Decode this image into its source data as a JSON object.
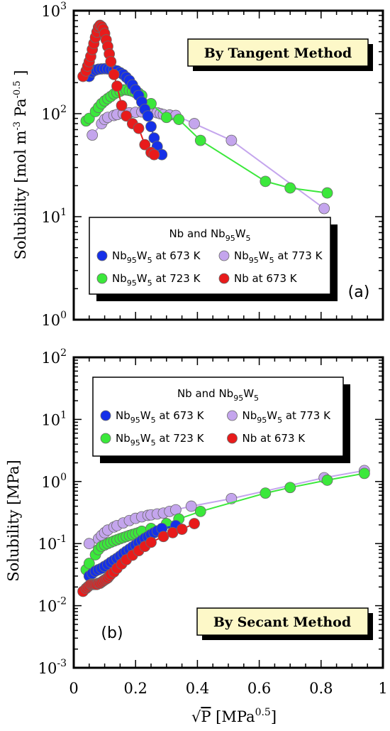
{
  "chart_data": [
    {
      "type": "scatter",
      "panel_label": "(a)",
      "method_box": "By Tangent Method",
      "ylabel": "Solubility [mol m-3 Pa-0.5 ]",
      "ylabel_parts": {
        "main": "Solubility [mol m",
        "exp1": "-3",
        "mid": " Pa",
        "exp2": "-0.5",
        "end": " ]"
      },
      "yscale": "log",
      "ylim": [
        1,
        1000
      ],
      "xlim": [
        0,
        1
      ],
      "y_ticks": [
        {
          "base": "10",
          "exp": "0",
          "value": 1
        },
        {
          "base": "10",
          "exp": "1",
          "value": 10
        },
        {
          "base": "10",
          "exp": "2",
          "value": 100
        },
        {
          "base": "10",
          "exp": "3",
          "value": 1000
        }
      ],
      "legend_title": {
        "a": "Nb and Nb",
        "sub": "95",
        "b": "W",
        "sub2": "5"
      },
      "series": [
        {
          "key": "nbw_673",
          "color": "#1530e8",
          "x": [
            0.05,
            0.06,
            0.07,
            0.08,
            0.09,
            0.1,
            0.11,
            0.12,
            0.13,
            0.14,
            0.15,
            0.16,
            0.17,
            0.18,
            0.19,
            0.2,
            0.21,
            0.22,
            0.23,
            0.24,
            0.25,
            0.26,
            0.27,
            0.285
          ],
          "y": [
            230,
            255,
            265,
            270,
            272,
            273,
            272,
            268,
            265,
            260,
            250,
            240,
            225,
            210,
            190,
            170,
            150,
            130,
            110,
            95,
            75,
            58,
            48,
            40
          ]
        },
        {
          "key": "nbw_723",
          "color": "#3be83b",
          "x": [
            0.04,
            0.05,
            0.07,
            0.08,
            0.09,
            0.1,
            0.11,
            0.12,
            0.13,
            0.14,
            0.15,
            0.16,
            0.17,
            0.18,
            0.19,
            0.2,
            0.21,
            0.22,
            0.25,
            0.3,
            0.34,
            0.41,
            0.62,
            0.7,
            0.82
          ],
          "y": [
            85,
            90,
            105,
            115,
            125,
            133,
            140,
            147,
            155,
            160,
            165,
            170,
            170,
            168,
            165,
            160,
            158,
            150,
            125,
            92,
            88,
            55,
            22,
            19,
            17
          ]
        },
        {
          "key": "nbw_773",
          "color": "#c4a5ed",
          "x": [
            0.06,
            0.09,
            0.1,
            0.11,
            0.13,
            0.14,
            0.16,
            0.18,
            0.2,
            0.22,
            0.24,
            0.25,
            0.27,
            0.28,
            0.29,
            0.31,
            0.33,
            0.39,
            0.51,
            0.81
          ],
          "y": [
            62,
            80,
            88,
            92,
            96,
            98,
            100,
            102,
            103,
            104,
            105,
            104,
            102,
            100,
            98,
            97,
            96,
            80,
            55,
            12
          ]
        },
        {
          "key": "nb_673",
          "color": "#e81b1b",
          "x": [
            0.03,
            0.04,
            0.045,
            0.05,
            0.055,
            0.06,
            0.065,
            0.07,
            0.075,
            0.08,
            0.085,
            0.09,
            0.095,
            0.1,
            0.105,
            0.11,
            0.115,
            0.12,
            0.13,
            0.14,
            0.155,
            0.17,
            0.19,
            0.21,
            0.23,
            0.25,
            0.26
          ],
          "y": [
            230,
            260,
            290,
            320,
            360,
            420,
            480,
            550,
            620,
            690,
            720,
            700,
            660,
            600,
            520,
            450,
            380,
            320,
            240,
            185,
            120,
            95,
            80,
            72,
            50,
            42,
            40
          ]
        }
      ]
    },
    {
      "type": "scatter",
      "panel_label": "(b)",
      "method_box": "By Secant Method",
      "ylabel": "Solubility [MPa]",
      "yscale": "log",
      "ylim": [
        0.001,
        100
      ],
      "xlim": [
        0,
        1
      ],
      "xlabel_parts": {
        "sqrt": "√",
        "var": "P",
        "rest": " [MPa",
        "exp": "0.5",
        "end": "]"
      },
      "x_ticks": [
        "0",
        "0.2",
        "0.4",
        "0.6",
        "0.8",
        "1"
      ],
      "x_tick_values": [
        0,
        0.2,
        0.4,
        0.6,
        0.8,
        1
      ],
      "y_ticks": [
        {
          "base": "10",
          "exp": "-3",
          "value": 0.001
        },
        {
          "base": "10",
          "exp": "-2",
          "value": 0.01
        },
        {
          "base": "10",
          "exp": "-1",
          "value": 0.1
        },
        {
          "base": "10",
          "exp": "0",
          "value": 1
        },
        {
          "base": "10",
          "exp": "1",
          "value": 10
        },
        {
          "base": "10",
          "exp": "2",
          "value": 100
        }
      ],
      "legend_title": {
        "a": "Nb and Nb",
        "sub": "95",
        "b": "W",
        "sub2": "5"
      },
      "series": [
        {
          "key": "nbw_673",
          "color": "#1530e8",
          "x": [
            0.05,
            0.06,
            0.07,
            0.08,
            0.09,
            0.1,
            0.11,
            0.12,
            0.13,
            0.14,
            0.15,
            0.16,
            0.17,
            0.18,
            0.19,
            0.2,
            0.21,
            0.22,
            0.23,
            0.24,
            0.25,
            0.26,
            0.27,
            0.285,
            0.33
          ],
          "y": [
            0.03,
            0.033,
            0.036,
            0.038,
            0.04,
            0.043,
            0.046,
            0.05,
            0.054,
            0.058,
            0.063,
            0.069,
            0.075,
            0.081,
            0.088,
            0.095,
            0.103,
            0.112,
            0.122,
            0.13,
            0.14,
            0.15,
            0.16,
            0.175,
            0.195
          ]
        },
        {
          "key": "nbw_723",
          "color": "#3be83b",
          "x": [
            0.04,
            0.05,
            0.07,
            0.08,
            0.09,
            0.1,
            0.11,
            0.12,
            0.13,
            0.14,
            0.15,
            0.16,
            0.17,
            0.18,
            0.19,
            0.2,
            0.21,
            0.22,
            0.25,
            0.3,
            0.34,
            0.41,
            0.62,
            0.7,
            0.82,
            0.94
          ],
          "y": [
            0.038,
            0.048,
            0.066,
            0.08,
            0.09,
            0.095,
            0.1,
            0.105,
            0.11,
            0.115,
            0.12,
            0.125,
            0.13,
            0.135,
            0.14,
            0.145,
            0.15,
            0.158,
            0.175,
            0.21,
            0.25,
            0.33,
            0.65,
            0.8,
            1.05,
            1.35
          ]
        },
        {
          "key": "nbw_773",
          "color": "#c4a5ed",
          "x": [
            0.05,
            0.08,
            0.09,
            0.1,
            0.11,
            0.13,
            0.14,
            0.16,
            0.18,
            0.2,
            0.22,
            0.24,
            0.25,
            0.27,
            0.29,
            0.31,
            0.33,
            0.38,
            0.51,
            0.81,
            0.94
          ],
          "y": [
            0.1,
            0.12,
            0.135,
            0.15,
            0.165,
            0.185,
            0.195,
            0.215,
            0.235,
            0.255,
            0.27,
            0.285,
            0.29,
            0.3,
            0.31,
            0.33,
            0.35,
            0.4,
            0.53,
            1.15,
            1.5
          ]
        },
        {
          "key": "nb_673",
          "color": "#e81b1b",
          "x": [
            0.03,
            0.04,
            0.045,
            0.05,
            0.055,
            0.06,
            0.065,
            0.07,
            0.075,
            0.08,
            0.085,
            0.09,
            0.095,
            0.1,
            0.105,
            0.11,
            0.115,
            0.12,
            0.13,
            0.14,
            0.155,
            0.17,
            0.19,
            0.21,
            0.23,
            0.25,
            0.29,
            0.32,
            0.35,
            0.39
          ],
          "y": [
            0.017,
            0.019,
            0.02,
            0.021,
            0.022,
            0.022,
            0.022,
            0.022,
            0.022,
            0.023,
            0.023,
            0.024,
            0.025,
            0.026,
            0.027,
            0.028,
            0.03,
            0.032,
            0.035,
            0.04,
            0.047,
            0.055,
            0.065,
            0.077,
            0.09,
            0.105,
            0.13,
            0.15,
            0.17,
            0.21
          ]
        }
      ]
    }
  ],
  "legend_entries": [
    {
      "key": "nbw_673",
      "color": "#1530e8",
      "a": "Nb",
      "sub": "95",
      "b": "W",
      "sub2": "5",
      "c": " at 673 K"
    },
    {
      "key": "nbw_773",
      "color": "#c4a5ed",
      "a": "Nb",
      "sub": "95",
      "b": "W",
      "sub2": "5",
      "c": " at 773 K"
    },
    {
      "key": "nbw_723",
      "color": "#3be83b",
      "a": "Nb",
      "sub": "95",
      "b": "W",
      "sub2": "5",
      "c": " at 723 K"
    },
    {
      "key": "nb_673",
      "color": "#e81b1b",
      "a": "Nb at 673 K",
      "sub": "",
      "b": "",
      "sub2": "",
      "c": ""
    }
  ],
  "colors": {
    "method_box_fill": "#fdf8c8",
    "axis": "#000000"
  }
}
